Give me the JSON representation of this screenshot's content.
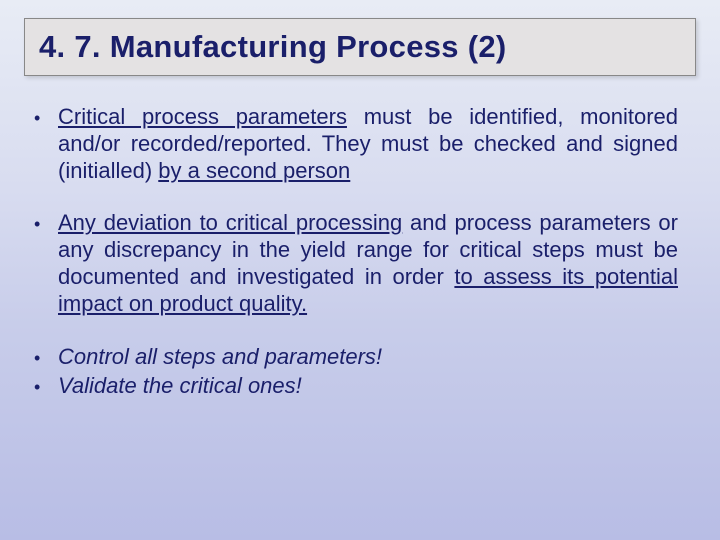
{
  "slide": {
    "title": "4. 7. Manufacturing Process (2)",
    "background_gradient": [
      "#e8ecf5",
      "#d8dcf0",
      "#c8cdea",
      "#b8bde5"
    ],
    "title_box_bg": "#e4e2e3",
    "title_color": "#1a1f6a",
    "text_color": "#1a1f6a",
    "title_fontsize": 31,
    "body_fontsize": 22,
    "bullets": [
      {
        "segments": [
          {
            "text": "Critical process parameters",
            "underline": true
          },
          {
            "text": " must be identified, monitored and/or recorded/reported. They must be checked and signed (initialled) "
          },
          {
            "text": "by a second person",
            "underline": true
          }
        ]
      },
      {
        "segments": [
          {
            "text": "Any deviation to critical processing",
            "underline": true
          },
          {
            "text": " and process parameters or any discrepancy in the yield range for critical steps must be documented and investigated in order "
          },
          {
            "text": "to assess its potential impact on product quality.",
            "underline": true
          }
        ]
      },
      {
        "tight": true,
        "segments": [
          {
            "text": "Control all steps and parameters!",
            "italic": true
          }
        ]
      },
      {
        "segments": [
          {
            "text": "Validate the critical ones!",
            "italic": true
          }
        ]
      }
    ]
  }
}
